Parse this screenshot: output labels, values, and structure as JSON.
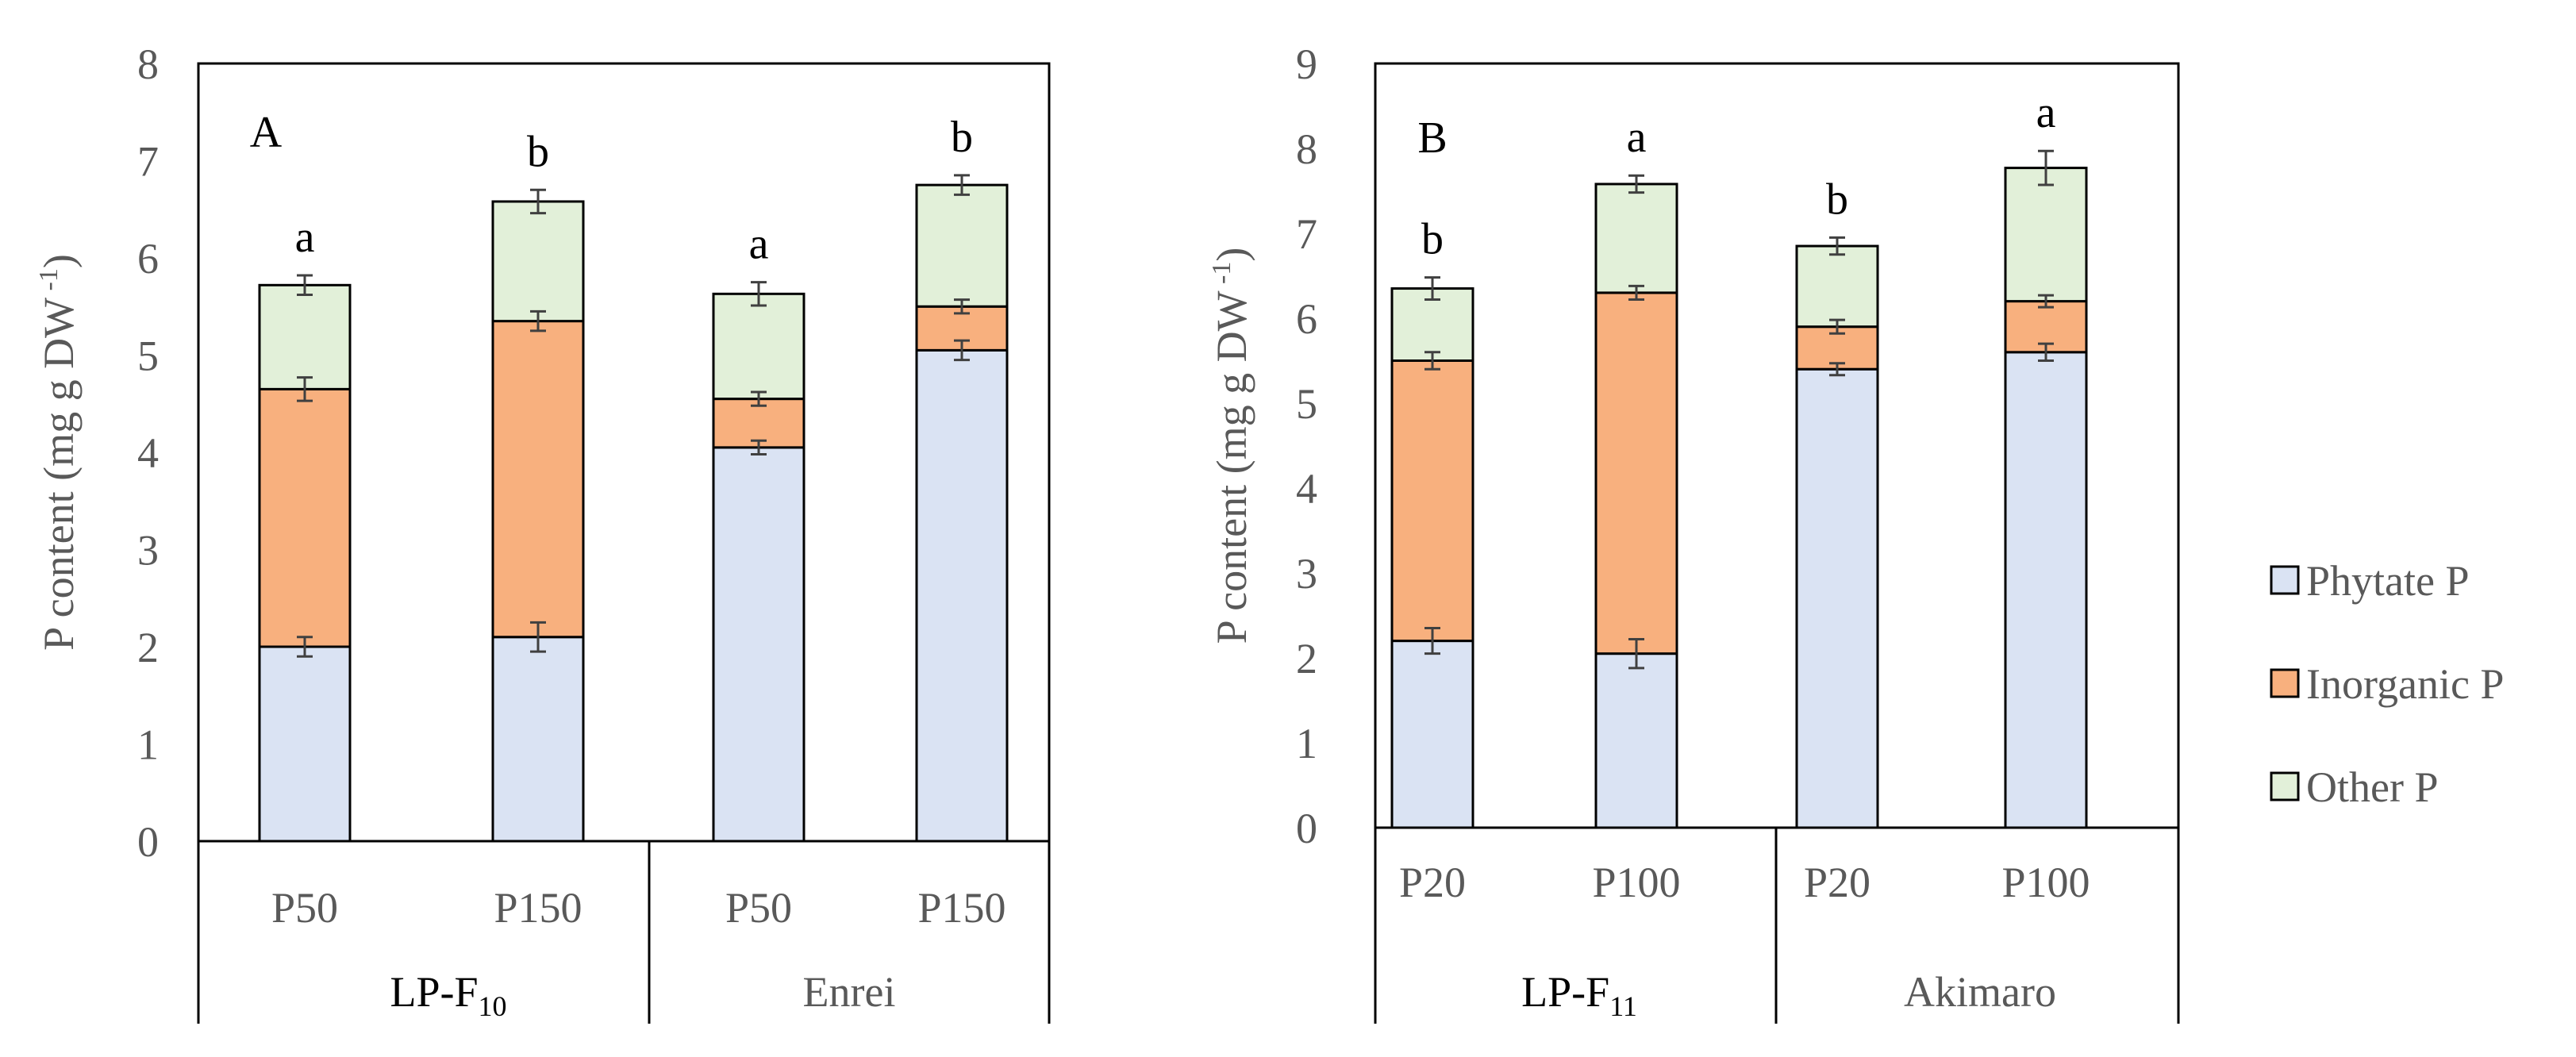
{
  "colors": {
    "phytate": "#dae3f3",
    "inorganic": "#f8b07e",
    "other": "#e2f0d9",
    "axis": "#000000",
    "error_bar": "#404040",
    "tick_text": "#595959"
  },
  "legend": {
    "items": [
      {
        "key": "phytate",
        "label": "Phytate P"
      },
      {
        "key": "inorganic",
        "label": "Inorganic P"
      },
      {
        "key": "other",
        "label": "Other P"
      }
    ]
  },
  "chart_data": [
    {
      "type": "bar",
      "stacked": true,
      "panel_label": "A",
      "ylabel": "P content (mg g DW",
      "ylabel_sup": "-1",
      "ylabel_close": ")",
      "ylim": [
        0,
        8
      ],
      "yticks": [
        0,
        1,
        2,
        3,
        4,
        5,
        6,
        7,
        8
      ],
      "categories": [
        "P50",
        "P150",
        "P50",
        "P150"
      ],
      "groups": [
        {
          "name_main": "LP-F",
          "name_sub": "10"
        },
        {
          "name_main": "Enrei",
          "name_sub": ""
        }
      ],
      "significance": [
        "a",
        "b",
        "a",
        "b"
      ],
      "series": [
        {
          "key": "phytate",
          "name": "Phytate P",
          "values": [
            2.0,
            2.1,
            4.05,
            5.05
          ],
          "errors": [
            0.1,
            0.15,
            0.07,
            0.1
          ]
        },
        {
          "key": "inorganic",
          "name": "Inorganic P",
          "values": [
            2.65,
            3.25,
            0.5,
            0.45
          ],
          "errors": [
            0.12,
            0.1,
            0.07,
            0.07
          ]
        },
        {
          "key": "other",
          "name": "Other P",
          "values": [
            1.07,
            1.23,
            1.08,
            1.25
          ],
          "errors": [
            0.1,
            0.12,
            0.12,
            0.1
          ]
        }
      ]
    },
    {
      "type": "bar",
      "stacked": true,
      "panel_label": "B",
      "ylabel": "P content (mg g DW",
      "ylabel_sup": "-1",
      "ylabel_close": ")",
      "ylim": [
        0,
        9
      ],
      "yticks": [
        0,
        1,
        2,
        3,
        4,
        5,
        6,
        7,
        8,
        9
      ],
      "categories": [
        "P20",
        "P100",
        "P20",
        "P100"
      ],
      "groups": [
        {
          "name_main": "LP-F",
          "name_sub": "11"
        },
        {
          "name_main": "Akimaro",
          "name_sub": ""
        }
      ],
      "significance": [
        "b",
        "a",
        "b",
        "a"
      ],
      "series": [
        {
          "key": "phytate",
          "name": "Phytate P",
          "values": [
            2.2,
            2.05,
            5.4,
            5.6
          ],
          "errors": [
            0.15,
            0.17,
            0.07,
            0.1
          ]
        },
        {
          "key": "inorganic",
          "name": "Inorganic P",
          "values": [
            3.3,
            4.25,
            0.5,
            0.6
          ],
          "errors": [
            0.1,
            0.08,
            0.08,
            0.07
          ]
        },
        {
          "key": "other",
          "name": "Other P",
          "values": [
            0.85,
            1.28,
            0.95,
            1.57
          ],
          "errors": [
            0.13,
            0.1,
            0.1,
            0.2
          ]
        }
      ]
    }
  ]
}
